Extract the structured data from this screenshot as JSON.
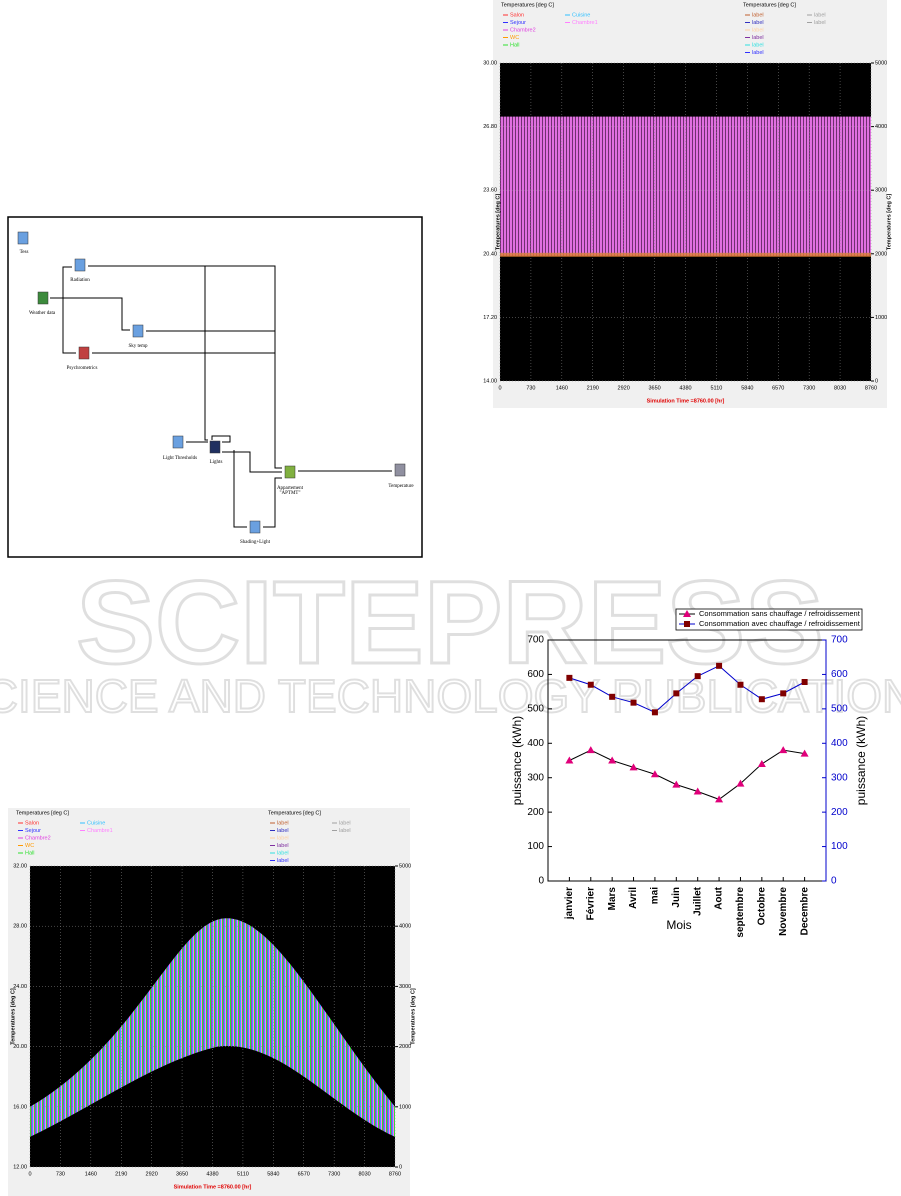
{
  "diagram": {
    "nodes": [
      {
        "label": "Tess"
      },
      {
        "label": "Radiation"
      },
      {
        "label": "Weather data"
      },
      {
        "label": "Sky temp"
      },
      {
        "label": "Psychrometrics"
      },
      {
        "label": "Light Thresholds"
      },
      {
        "label": "Lights"
      },
      {
        "label": [
          "Appartement",
          "\"APTMT\""
        ]
      },
      {
        "label": "Temperature"
      },
      {
        "label": "Shading+Light"
      }
    ]
  },
  "watermark": {
    "name": "SCITEPRESS",
    "subtitle": "SCIENCE AND TECHNOLOGY PUBLICATIONS"
  },
  "plots": [
    {
      "legend_title_left": "Temperatures  [deg C]",
      "legend_left": [
        {
          "name": "Salon",
          "color": "#ff3030"
        },
        {
          "name": "Cuisine",
          "color": "#30c0ff"
        },
        {
          "name": "Sejour",
          "color": "#3030ff"
        },
        {
          "name": "Chambre1",
          "color": "#ff80ff"
        },
        {
          "name": "Chambre2",
          "color": "#e040e0"
        },
        {
          "name": "WC",
          "color": "#ff9900"
        },
        {
          "name": "Hall",
          "color": "#30e030"
        }
      ],
      "legend_title_right": "Temperatures  [deg C]",
      "legend_right": [
        {
          "name": "label",
          "color": "#c06030"
        },
        {
          "name": "label",
          "color": "#a0a0a0"
        },
        {
          "name": "label",
          "color": "#3030c0"
        },
        {
          "name": "label",
          "color": "#a0a0a0"
        },
        {
          "name": "label",
          "color": "#ffd0a0"
        },
        {
          "name": "label",
          "color": "#8030a0"
        },
        {
          "name": "label",
          "color": "#30e0e0"
        },
        {
          "name": "label",
          "color": "#3030ff"
        }
      ],
      "ylabel": "Temperatures  [deg C]",
      "y2label": "Temperatures  [deg C]",
      "xlabel": "Simulation Time =8760.00 [hr]",
      "ylim": [
        14,
        30
      ],
      "yticks": [
        {
          "value": 14,
          "label": "14.00"
        },
        {
          "value": 17.2,
          "label": "17.20"
        },
        {
          "value": 20.4,
          "label": "20.40"
        },
        {
          "value": 23.6,
          "label": "23.60"
        },
        {
          "value": 26.8,
          "label": "26.80"
        },
        {
          "value": 30,
          "label": "30.00"
        }
      ],
      "y2lim": [
        0,
        5000
      ],
      "y2ticks": [
        0,
        1000,
        2000,
        3000,
        4000,
        5000
      ],
      "xlim": [
        0,
        8760
      ],
      "xticks": [
        0,
        730,
        1460,
        2190,
        2920,
        3650,
        4380,
        5110,
        5840,
        6570,
        7300,
        8030,
        8760
      ]
    },
    {
      "legend_title_left": "Temperatures  [deg C]",
      "legend_left": [
        {
          "name": "Salon",
          "color": "#ff3030"
        },
        {
          "name": "Cuisine",
          "color": "#30c0ff"
        },
        {
          "name": "Sejour",
          "color": "#3030ff"
        },
        {
          "name": "Chambre1",
          "color": "#ff80ff"
        },
        {
          "name": "Chambre2",
          "color": "#e040e0"
        },
        {
          "name": "WC",
          "color": "#ff9900"
        },
        {
          "name": "Hall",
          "color": "#30e030"
        }
      ],
      "legend_title_right": "Temperatures  [deg C]",
      "legend_right": [
        {
          "name": "label",
          "color": "#c06030"
        },
        {
          "name": "label",
          "color": "#a0a0a0"
        },
        {
          "name": "label",
          "color": "#3030c0"
        },
        {
          "name": "label",
          "color": "#a0a0a0"
        },
        {
          "name": "label",
          "color": "#ffd0a0"
        },
        {
          "name": "label",
          "color": "#8030a0"
        },
        {
          "name": "label",
          "color": "#30e0e0"
        },
        {
          "name": "label",
          "color": "#3030ff"
        }
      ],
      "ylabel": "Temperatures  [deg C]",
      "y2label": "Temperatures  [deg C]",
      "xlabel": "Simulation Time =8760.00 [hr]",
      "ylim": [
        12,
        32
      ],
      "yticks": [
        {
          "value": 12,
          "label": "12.00"
        },
        {
          "value": 16,
          "label": "16.00"
        },
        {
          "value": 20,
          "label": "20.00"
        },
        {
          "value": 24,
          "label": "24.00"
        },
        {
          "value": 28,
          "label": "28.00"
        },
        {
          "value": 32,
          "label": "32.00"
        }
      ],
      "y2lim": [
        0,
        5000
      ],
      "y2ticks": [
        0,
        1000,
        2000,
        3000,
        4000,
        5000
      ],
      "xlim": [
        0,
        8760
      ],
      "xticks": [
        0,
        730,
        1460,
        2190,
        2920,
        3650,
        4380,
        5110,
        5840,
        6570,
        7300,
        8030,
        8760
      ]
    }
  ],
  "chart_data": {
    "type": "line",
    "categories": [
      "janvier",
      "Février",
      "Mars",
      "Avril",
      "mai",
      "Juin",
      "Juillet",
      "Aout",
      "septembre",
      "Octobre",
      "Novembre",
      "Decembre"
    ],
    "series": [
      {
        "name": "Consommation sans chauffage / refroidissement",
        "color": "#e0007a",
        "line_color": "#000000",
        "marker": "triangle",
        "values": [
          350,
          380,
          350,
          330,
          310,
          280,
          260,
          237,
          283,
          340,
          380,
          370
        ]
      },
      {
        "name": "Consommation avec chauffage / refroidissement",
        "color": "#800000",
        "line_color": "#0000cc",
        "marker": "square",
        "values": [
          590,
          570,
          535,
          518,
          490,
          545,
          595,
          625,
          570,
          528,
          545,
          578
        ]
      }
    ],
    "xlabel": "Mois",
    "ylabel": "puissance (kWh)",
    "y2label": "puissance (kWh)",
    "ylim": [
      0,
      700
    ],
    "yticks": [
      0,
      100,
      200,
      300,
      400,
      500,
      600,
      700
    ],
    "y2lim": [
      0,
      700
    ],
    "y2ticks": [
      0,
      100,
      200,
      300,
      400,
      500,
      600,
      700
    ],
    "y2color": "#0000cc"
  }
}
